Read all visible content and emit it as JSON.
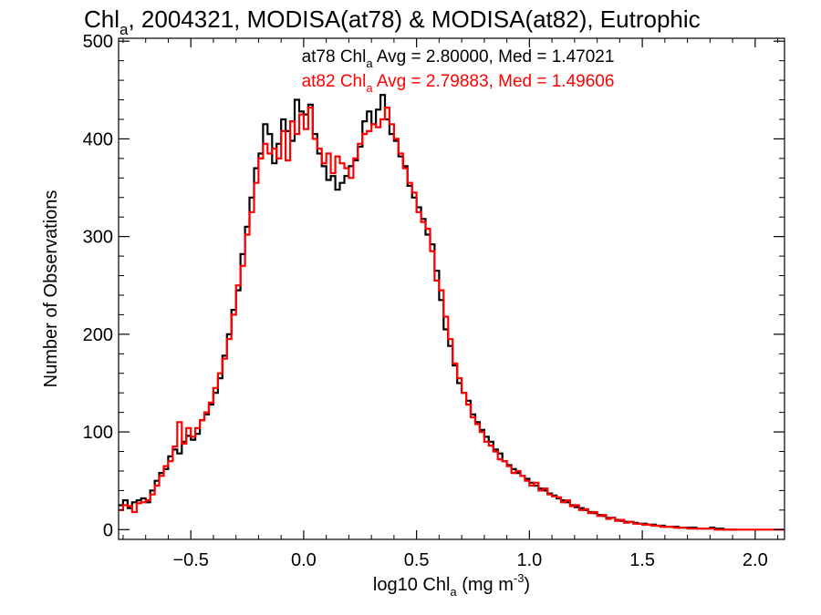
{
  "chart_data": {
    "type": "line",
    "title": {
      "main": "Chl",
      "sub": "a",
      "rest": ", 2004321, MODISA(at78) & MODISA(at82), Eutrophic"
    },
    "ylabel": "Number of Observations",
    "xlabel": {
      "main": "log10 Chl",
      "sub": "a",
      "rest": " (mg m",
      "sup": "-3",
      "end": ")"
    },
    "xlim": [
      -0.82,
      2.13
    ],
    "ylim": [
      -10,
      503
    ],
    "x_ticks": [
      {
        "v": -0.5,
        "label": "−0.5"
      },
      {
        "v": 0.0,
        "label": "0.0"
      },
      {
        "v": 0.5,
        "label": "0.5"
      },
      {
        "v": 1.0,
        "label": "1.0"
      },
      {
        "v": 1.5,
        "label": "1.5"
      },
      {
        "v": 2.0,
        "label": "2.0"
      }
    ],
    "y_ticks": [
      {
        "v": 0,
        "label": "0"
      },
      {
        "v": 100,
        "label": "100"
      },
      {
        "v": 200,
        "label": "200"
      },
      {
        "v": 300,
        "label": "300"
      },
      {
        "v": 400,
        "label": "400"
      },
      {
        "v": 500,
        "label": "500"
      }
    ],
    "annotations": [
      {
        "pre": "at78 Chl",
        "sub": "a",
        "post": " Avg = 2.80000, Med = 1.47021",
        "color": "#000000"
      },
      {
        "pre": "at82 Chl",
        "sub": "a",
        "post": " Avg = 2.79883, Med = 1.49606",
        "color": "#ff0000"
      }
    ],
    "grid": false,
    "legend": "none",
    "series": [
      {
        "color": "#000000",
        "step": true,
        "points": [
          [
            -0.82,
            25
          ],
          [
            -0.8,
            30
          ],
          [
            -0.78,
            22
          ],
          [
            -0.76,
            28
          ],
          [
            -0.74,
            30
          ],
          [
            -0.72,
            32
          ],
          [
            -0.7,
            28
          ],
          [
            -0.68,
            40
          ],
          [
            -0.66,
            50
          ],
          [
            -0.64,
            58
          ],
          [
            -0.62,
            62
          ],
          [
            -0.6,
            75
          ],
          [
            -0.58,
            82
          ],
          [
            -0.56,
            78
          ],
          [
            -0.54,
            90
          ],
          [
            -0.52,
            96
          ],
          [
            -0.5,
            92
          ],
          [
            -0.48,
            98
          ],
          [
            -0.46,
            112
          ],
          [
            -0.44,
            118
          ],
          [
            -0.42,
            128
          ],
          [
            -0.4,
            140
          ],
          [
            -0.38,
            155
          ],
          [
            -0.36,
            178
          ],
          [
            -0.34,
            200
          ],
          [
            -0.32,
            225
          ],
          [
            -0.3,
            245
          ],
          [
            -0.28,
            282
          ],
          [
            -0.26,
            310
          ],
          [
            -0.24,
            340
          ],
          [
            -0.22,
            370
          ],
          [
            -0.2,
            385
          ],
          [
            -0.18,
            415
          ],
          [
            -0.16,
            405
          ],
          [
            -0.14,
            375
          ],
          [
            -0.12,
            395
          ],
          [
            -0.1,
            420
          ],
          [
            -0.08,
            408
          ],
          [
            -0.06,
            398
          ],
          [
            -0.04,
            440
          ],
          [
            -0.02,
            428
          ],
          [
            0.0,
            425
          ],
          [
            0.02,
            435
          ],
          [
            0.04,
            405
          ],
          [
            0.06,
            385
          ],
          [
            0.08,
            372
          ],
          [
            0.1,
            358
          ],
          [
            0.12,
            362
          ],
          [
            0.14,
            348
          ],
          [
            0.16,
            355
          ],
          [
            0.18,
            362
          ],
          [
            0.2,
            372
          ],
          [
            0.22,
            378
          ],
          [
            0.24,
            392
          ],
          [
            0.26,
            418
          ],
          [
            0.28,
            428
          ],
          [
            0.3,
            415
          ],
          [
            0.32,
            430
          ],
          [
            0.34,
            445
          ],
          [
            0.36,
            420
          ],
          [
            0.38,
            405
          ],
          [
            0.4,
            398
          ],
          [
            0.42,
            382
          ],
          [
            0.44,
            372
          ],
          [
            0.46,
            352
          ],
          [
            0.48,
            340
          ],
          [
            0.5,
            330
          ],
          [
            0.52,
            318
          ],
          [
            0.54,
            302
          ],
          [
            0.56,
            292
          ],
          [
            0.58,
            265
          ],
          [
            0.6,
            235
          ],
          [
            0.62,
            205
          ],
          [
            0.64,
            188
          ],
          [
            0.66,
            168
          ],
          [
            0.68,
            150
          ],
          [
            0.7,
            140
          ],
          [
            0.72,
            132
          ],
          [
            0.74,
            118
          ],
          [
            0.76,
            110
          ],
          [
            0.78,
            102
          ],
          [
            0.8,
            95
          ],
          [
            0.82,
            90
          ],
          [
            0.84,
            82
          ],
          [
            0.86,
            78
          ],
          [
            0.88,
            70
          ],
          [
            0.9,
            66
          ],
          [
            0.92,
            62
          ],
          [
            0.94,
            58
          ],
          [
            0.96,
            55
          ],
          [
            0.98,
            52
          ],
          [
            1.0,
            48
          ],
          [
            1.02,
            45
          ],
          [
            1.04,
            42
          ],
          [
            1.06,
            40
          ],
          [
            1.08,
            37
          ],
          [
            1.1,
            35
          ],
          [
            1.12,
            32
          ],
          [
            1.14,
            30
          ],
          [
            1.16,
            28
          ],
          [
            1.18,
            25
          ],
          [
            1.2,
            23
          ],
          [
            1.22,
            22
          ],
          [
            1.24,
            20
          ],
          [
            1.26,
            18
          ],
          [
            1.28,
            17
          ],
          [
            1.3,
            15
          ],
          [
            1.32,
            14
          ],
          [
            1.34,
            12
          ],
          [
            1.36,
            12
          ],
          [
            1.38,
            10
          ],
          [
            1.4,
            9
          ],
          [
            1.42,
            8
          ],
          [
            1.44,
            8
          ],
          [
            1.46,
            7
          ],
          [
            1.48,
            6
          ],
          [
            1.5,
            6
          ],
          [
            1.52,
            5
          ],
          [
            1.54,
            5
          ],
          [
            1.56,
            4
          ],
          [
            1.58,
            4
          ],
          [
            1.6,
            3
          ],
          [
            1.62,
            3
          ],
          [
            1.64,
            3
          ],
          [
            1.66,
            2
          ],
          [
            1.68,
            2
          ],
          [
            1.7,
            2
          ],
          [
            1.72,
            2
          ],
          [
            1.74,
            1
          ],
          [
            1.76,
            1
          ],
          [
            1.78,
            1
          ],
          [
            1.8,
            2
          ],
          [
            1.82,
            1
          ],
          [
            1.84,
            1
          ],
          [
            1.86,
            0
          ],
          [
            1.88,
            0
          ],
          [
            1.9,
            0
          ]
        ]
      },
      {
        "color": "#ff0000",
        "step": true,
        "points": [
          [
            -0.82,
            20
          ],
          [
            -0.8,
            25
          ],
          [
            -0.78,
            24
          ],
          [
            -0.76,
            18
          ],
          [
            -0.74,
            27
          ],
          [
            -0.72,
            28
          ],
          [
            -0.7,
            30
          ],
          [
            -0.68,
            36
          ],
          [
            -0.66,
            45
          ],
          [
            -0.64,
            55
          ],
          [
            -0.62,
            65
          ],
          [
            -0.6,
            70
          ],
          [
            -0.58,
            85
          ],
          [
            -0.56,
            110
          ],
          [
            -0.54,
            88
          ],
          [
            -0.52,
            104
          ],
          [
            -0.5,
            95
          ],
          [
            -0.48,
            104
          ],
          [
            -0.46,
            112
          ],
          [
            -0.44,
            120
          ],
          [
            -0.42,
            130
          ],
          [
            -0.4,
            145
          ],
          [
            -0.38,
            160
          ],
          [
            -0.36,
            175
          ],
          [
            -0.34,
            195
          ],
          [
            -0.32,
            220
          ],
          [
            -0.3,
            250
          ],
          [
            -0.28,
            270
          ],
          [
            -0.26,
            302
          ],
          [
            -0.24,
            325
          ],
          [
            -0.22,
            355
          ],
          [
            -0.2,
            380
          ],
          [
            -0.18,
            395
          ],
          [
            -0.16,
            385
          ],
          [
            -0.14,
            390
          ],
          [
            -0.12,
            380
          ],
          [
            -0.1,
            408
          ],
          [
            -0.08,
            378
          ],
          [
            -0.06,
            418
          ],
          [
            -0.04,
            405
          ],
          [
            -0.02,
            425
          ],
          [
            0.0,
            410
          ],
          [
            0.02,
            432
          ],
          [
            0.04,
            400
          ],
          [
            0.06,
            390
          ],
          [
            0.08,
            375
          ],
          [
            0.1,
            385
          ],
          [
            0.12,
            365
          ],
          [
            0.14,
            382
          ],
          [
            0.16,
            375
          ],
          [
            0.18,
            370
          ],
          [
            0.2,
            360
          ],
          [
            0.22,
            380
          ],
          [
            0.24,
            395
          ],
          [
            0.26,
            405
          ],
          [
            0.28,
            408
          ],
          [
            0.3,
            415
          ],
          [
            0.32,
            412
          ],
          [
            0.34,
            420
          ],
          [
            0.36,
            432
          ],
          [
            0.38,
            415
          ],
          [
            0.4,
            400
          ],
          [
            0.42,
            385
          ],
          [
            0.44,
            370
          ],
          [
            0.46,
            355
          ],
          [
            0.48,
            345
          ],
          [
            0.5,
            325
          ],
          [
            0.52,
            315
          ],
          [
            0.54,
            308
          ],
          [
            0.56,
            285
          ],
          [
            0.58,
            255
          ],
          [
            0.6,
            245
          ],
          [
            0.62,
            218
          ],
          [
            0.64,
            195
          ],
          [
            0.66,
            170
          ],
          [
            0.68,
            155
          ],
          [
            0.7,
            140
          ],
          [
            0.72,
            128
          ],
          [
            0.74,
            115
          ],
          [
            0.76,
            108
          ],
          [
            0.78,
            100
          ],
          [
            0.8,
            90
          ],
          [
            0.82,
            86
          ],
          [
            0.84,
            80
          ],
          [
            0.86,
            72
          ],
          [
            0.88,
            70
          ],
          [
            0.9,
            65
          ],
          [
            0.92,
            58
          ],
          [
            0.94,
            60
          ],
          [
            0.96,
            55
          ],
          [
            0.98,
            50
          ],
          [
            1.0,
            45
          ],
          [
            1.02,
            48
          ],
          [
            1.04,
            40
          ],
          [
            1.06,
            42
          ],
          [
            1.08,
            36
          ],
          [
            1.1,
            34
          ],
          [
            1.12,
            33
          ],
          [
            1.14,
            28
          ],
          [
            1.16,
            30
          ],
          [
            1.18,
            24
          ],
          [
            1.2,
            25
          ],
          [
            1.22,
            20
          ],
          [
            1.24,
            21
          ],
          [
            1.26,
            17
          ],
          [
            1.28,
            18
          ],
          [
            1.3,
            14
          ],
          [
            1.32,
            15
          ],
          [
            1.34,
            11
          ],
          [
            1.36,
            12
          ],
          [
            1.38,
            9
          ],
          [
            1.4,
            10
          ],
          [
            1.42,
            7
          ],
          [
            1.44,
            8
          ],
          [
            1.46,
            6
          ],
          [
            1.48,
            6
          ],
          [
            1.5,
            5
          ],
          [
            1.52,
            5
          ],
          [
            1.54,
            4
          ],
          [
            1.56,
            4
          ],
          [
            1.58,
            3
          ],
          [
            1.6,
            3
          ],
          [
            1.62,
            3
          ],
          [
            1.64,
            2
          ],
          [
            1.66,
            2
          ],
          [
            1.68,
            2
          ],
          [
            1.7,
            1
          ],
          [
            1.72,
            1
          ],
          [
            1.74,
            1
          ],
          [
            1.76,
            1
          ],
          [
            1.78,
            1
          ],
          [
            1.8,
            1
          ],
          [
            1.82,
            0
          ],
          [
            1.84,
            0
          ],
          [
            1.86,
            0
          ],
          [
            1.88,
            0
          ],
          [
            1.9,
            0
          ],
          [
            1.92,
            0
          ],
          [
            1.94,
            0
          ],
          [
            1.96,
            0
          ],
          [
            1.98,
            0
          ],
          [
            2.0,
            0
          ],
          [
            2.02,
            0
          ],
          [
            2.04,
            0
          ],
          [
            2.06,
            0
          ],
          [
            2.08,
            0
          ],
          [
            2.1,
            0
          ],
          [
            2.12,
            0
          ]
        ]
      }
    ]
  }
}
